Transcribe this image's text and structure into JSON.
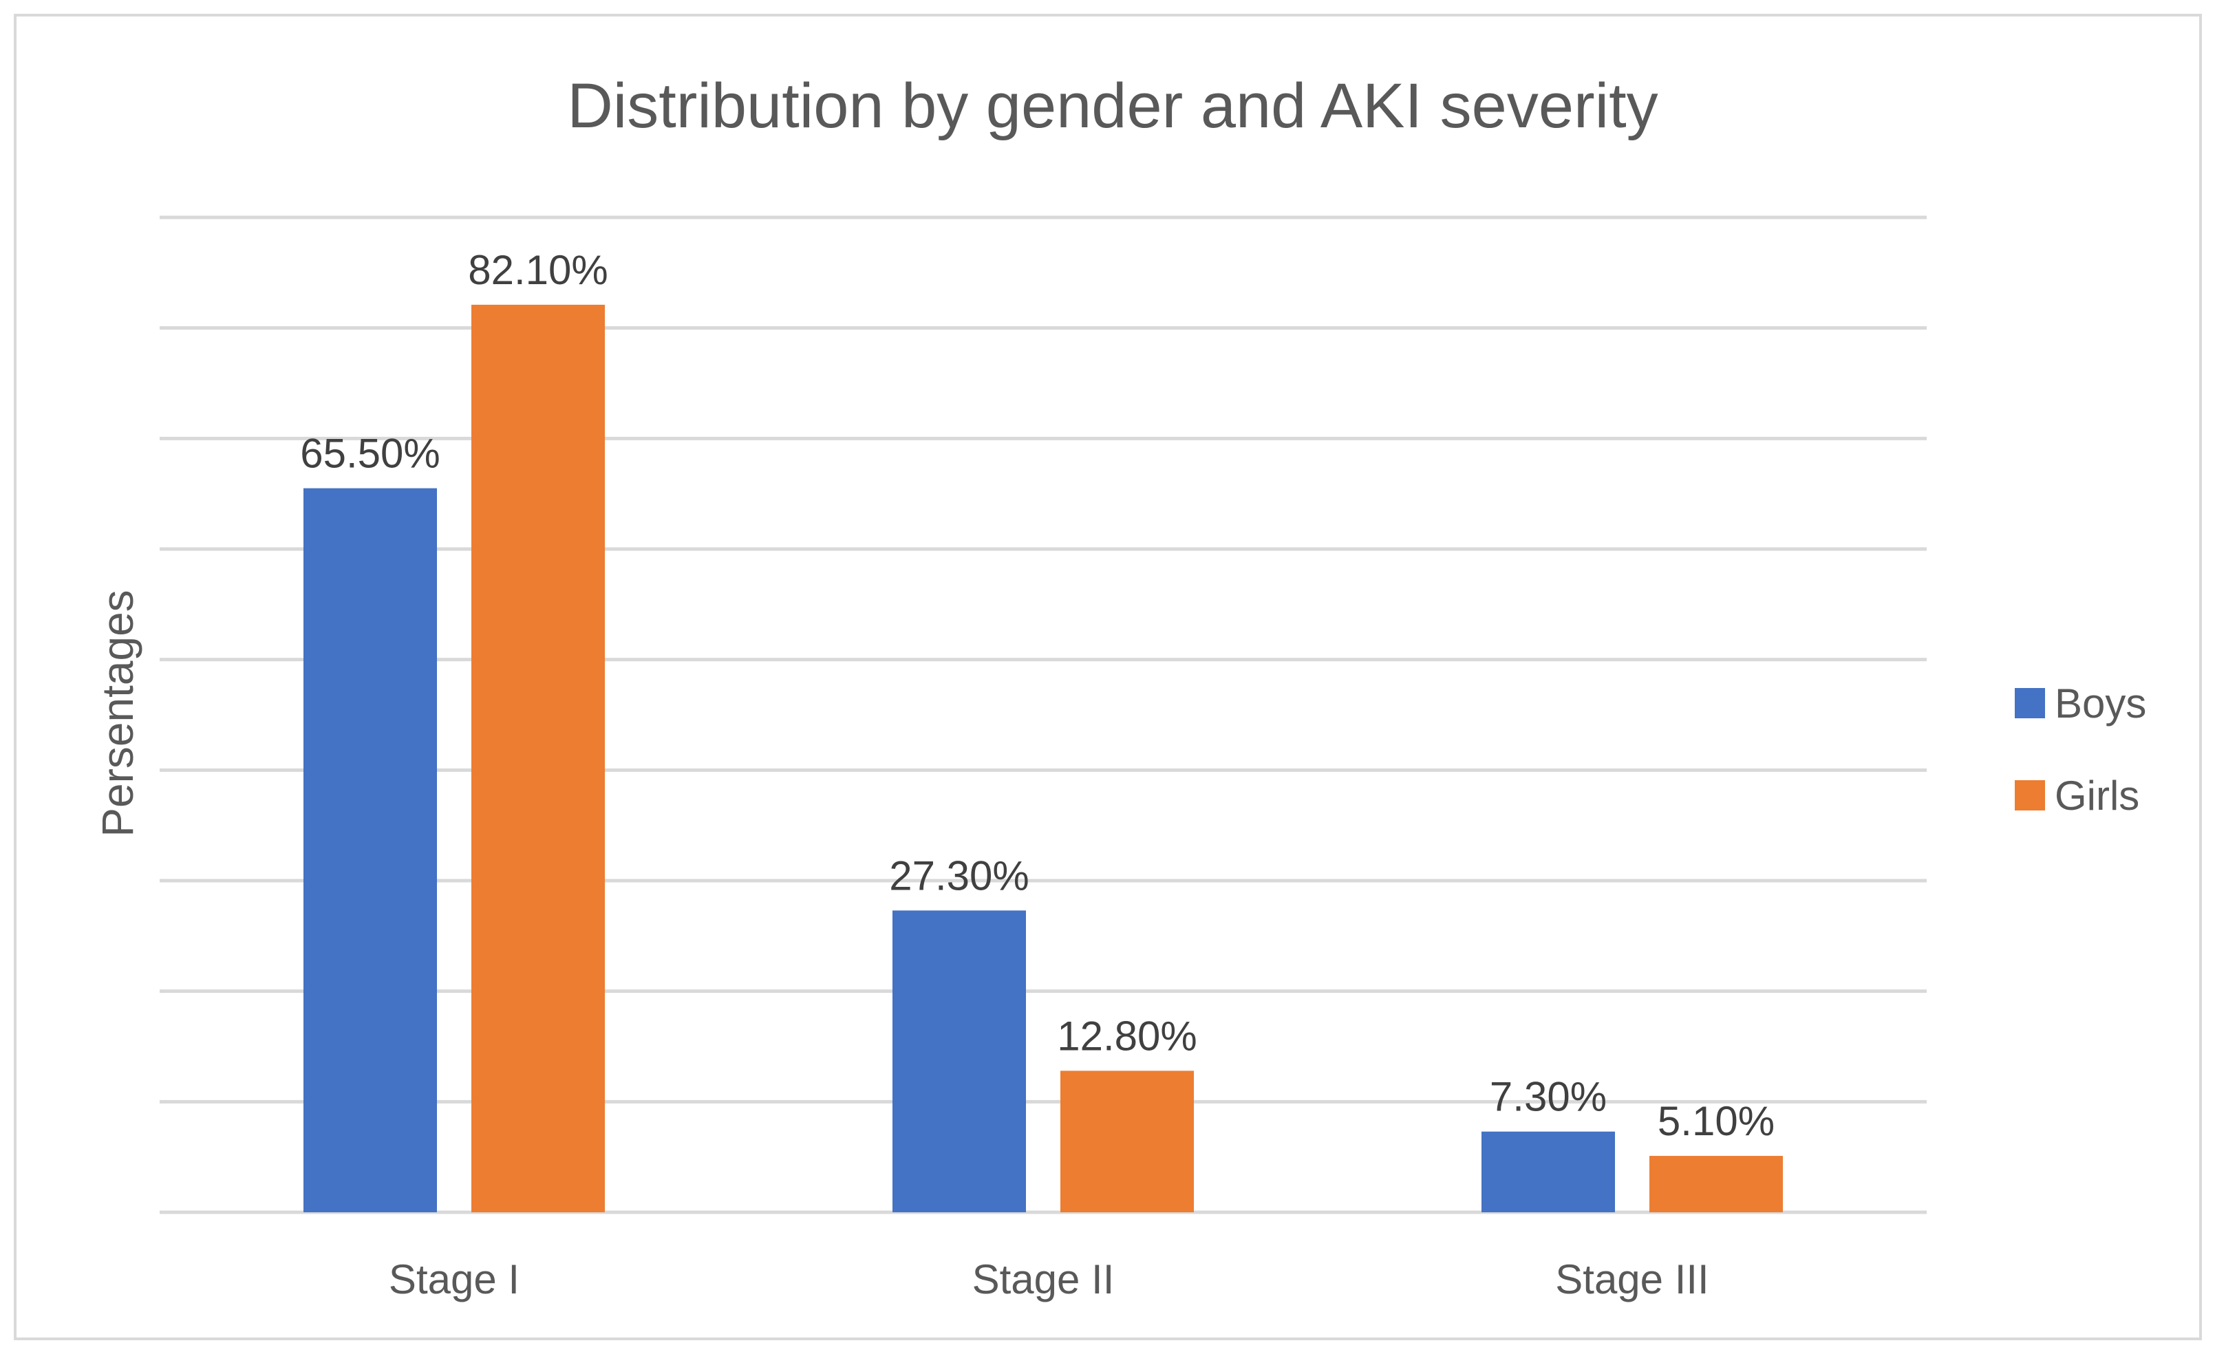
{
  "chart_data": {
    "type": "bar",
    "title": "Distribution by gender and AKI severity",
    "xlabel": "",
    "ylabel": "Persentages",
    "categories": [
      "Stage I",
      "Stage II",
      "Stage III"
    ],
    "series": [
      {
        "name": "Boys",
        "color": "#4472c4",
        "values": [
          65.5,
          27.3,
          7.3
        ],
        "labels": [
          "65.50%",
          "27.30%",
          "7.30%"
        ]
      },
      {
        "name": "Girls",
        "color": "#ed7d31",
        "values": [
          82.1,
          12.8,
          5.1
        ],
        "labels": [
          "82.10%",
          "12.80%",
          "5.10%"
        ]
      }
    ],
    "ylim": [
      0,
      90
    ],
    "gridlines": true,
    "gridline_step": 10,
    "y_tick_labels_shown": false,
    "legend_position": "right",
    "gridline_color": "#d9d9d9"
  }
}
